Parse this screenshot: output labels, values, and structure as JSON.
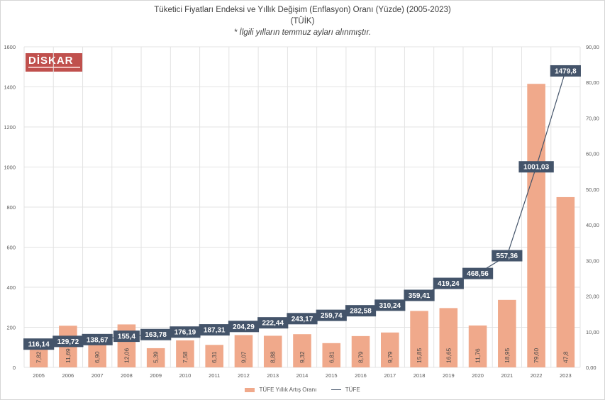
{
  "titles": {
    "line1": "Tüketici Fiyatları Endeksi ve Yıllık Değişim (Enflasyon) Oranı (Yüzde) (2005-2023)",
    "line2": "(TÜİK)",
    "line3": "* İlgili yılların temmuz ayları alınmıştır."
  },
  "logo": {
    "text": "DİSKAR"
  },
  "legend": {
    "bar": "TÜFE Yıllık Artış Oranı",
    "line": "TÜFE"
  },
  "colors": {
    "bar": "#f0a98b",
    "line": "#44546a",
    "grid": "#e3e3e3"
  },
  "chart_data": {
    "type": "bar+line",
    "categories": [
      "2005",
      "2006",
      "2007",
      "2008",
      "2009",
      "2010",
      "2011",
      "2012",
      "2013",
      "2014",
      "2015",
      "2016",
      "2017",
      "2018",
      "2019",
      "2020",
      "2021",
      "2022",
      "2023"
    ],
    "series": [
      {
        "name": "TÜFE Yıllık Artış Oranı",
        "type": "bar",
        "axis": "right",
        "values": [
          7.82,
          11.69,
          6.9,
          12.06,
          5.39,
          7.58,
          6.31,
          9.07,
          8.88,
          9.32,
          6.81,
          8.79,
          9.79,
          15.85,
          16.65,
          11.76,
          18.95,
          79.6,
          47.8
        ],
        "labels": [
          "7,82",
          "11,69",
          "6,90",
          "12,06",
          "5,39",
          "7,58",
          "6,31",
          "9,07",
          "8,88",
          "9,32",
          "6,81",
          "8,79",
          "9,79",
          "15,85",
          "16,65",
          "11,76",
          "18,95",
          "79,60",
          "47,8"
        ]
      },
      {
        "name": "TÜFE",
        "type": "line",
        "axis": "left",
        "values": [
          116.14,
          129.72,
          138.67,
          155.4,
          163.78,
          176.19,
          187.31,
          204.29,
          222.44,
          243.17,
          259.74,
          282.58,
          310.24,
          359.41,
          419.24,
          468.56,
          557.36,
          1001.03,
          1479.8
        ],
        "labels": [
          "116,14",
          "129,72",
          "138,67",
          "155,4",
          "163,78",
          "176,19",
          "187,31",
          "204,29",
          "222,44",
          "243,17",
          "259,74",
          "282,58",
          "310,24",
          "359,41",
          "419,24",
          "468,56",
          "557,36",
          "1001,03",
          "1479,8"
        ]
      }
    ],
    "y_left": {
      "min": 0,
      "max": 1600,
      "ticks": [
        "0",
        "200",
        "400",
        "600",
        "800",
        "1000",
        "1200",
        "1400",
        "1600"
      ]
    },
    "y_right": {
      "min": 0,
      "max": 90,
      "ticks": [
        "0,00",
        "10,00",
        "20,00",
        "30,00",
        "40,00",
        "50,00",
        "60,00",
        "70,00",
        "80,00",
        "90,00"
      ]
    },
    "grid": true,
    "legend_position": "bottom"
  }
}
